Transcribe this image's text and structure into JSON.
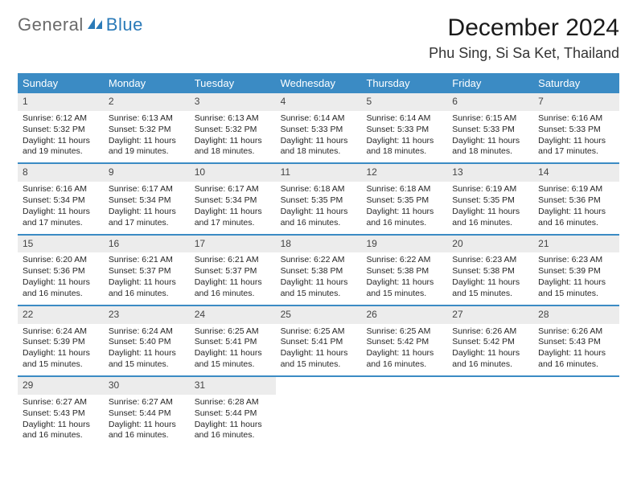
{
  "logo": {
    "text1": "General",
    "text2": "Blue",
    "icon_color": "#2a7ab8"
  },
  "title": "December 2024",
  "location": "Phu Sing, Si Sa Ket, Thailand",
  "colors": {
    "header_bg": "#3b8bc4",
    "header_text": "#ffffff",
    "daynum_bg": "#ececec",
    "week_border": "#3b8bc4",
    "body_text": "#262626"
  },
  "typography": {
    "title_fontsize": 30,
    "location_fontsize": 18,
    "dayheader_fontsize": 13,
    "daynum_fontsize": 12,
    "body_fontsize": 10.5
  },
  "day_labels": [
    "Sunday",
    "Monday",
    "Tuesday",
    "Wednesday",
    "Thursday",
    "Friday",
    "Saturday"
  ],
  "weeks": [
    [
      {
        "day": "1",
        "sunrise": "Sunrise: 6:12 AM",
        "sunset": "Sunset: 5:32 PM",
        "daylight": "Daylight: 11 hours and 19 minutes."
      },
      {
        "day": "2",
        "sunrise": "Sunrise: 6:13 AM",
        "sunset": "Sunset: 5:32 PM",
        "daylight": "Daylight: 11 hours and 19 minutes."
      },
      {
        "day": "3",
        "sunrise": "Sunrise: 6:13 AM",
        "sunset": "Sunset: 5:32 PM",
        "daylight": "Daylight: 11 hours and 18 minutes."
      },
      {
        "day": "4",
        "sunrise": "Sunrise: 6:14 AM",
        "sunset": "Sunset: 5:33 PM",
        "daylight": "Daylight: 11 hours and 18 minutes."
      },
      {
        "day": "5",
        "sunrise": "Sunrise: 6:14 AM",
        "sunset": "Sunset: 5:33 PM",
        "daylight": "Daylight: 11 hours and 18 minutes."
      },
      {
        "day": "6",
        "sunrise": "Sunrise: 6:15 AM",
        "sunset": "Sunset: 5:33 PM",
        "daylight": "Daylight: 11 hours and 18 minutes."
      },
      {
        "day": "7",
        "sunrise": "Sunrise: 6:16 AM",
        "sunset": "Sunset: 5:33 PM",
        "daylight": "Daylight: 11 hours and 17 minutes."
      }
    ],
    [
      {
        "day": "8",
        "sunrise": "Sunrise: 6:16 AM",
        "sunset": "Sunset: 5:34 PM",
        "daylight": "Daylight: 11 hours and 17 minutes."
      },
      {
        "day": "9",
        "sunrise": "Sunrise: 6:17 AM",
        "sunset": "Sunset: 5:34 PM",
        "daylight": "Daylight: 11 hours and 17 minutes."
      },
      {
        "day": "10",
        "sunrise": "Sunrise: 6:17 AM",
        "sunset": "Sunset: 5:34 PM",
        "daylight": "Daylight: 11 hours and 17 minutes."
      },
      {
        "day": "11",
        "sunrise": "Sunrise: 6:18 AM",
        "sunset": "Sunset: 5:35 PM",
        "daylight": "Daylight: 11 hours and 16 minutes."
      },
      {
        "day": "12",
        "sunrise": "Sunrise: 6:18 AM",
        "sunset": "Sunset: 5:35 PM",
        "daylight": "Daylight: 11 hours and 16 minutes."
      },
      {
        "day": "13",
        "sunrise": "Sunrise: 6:19 AM",
        "sunset": "Sunset: 5:35 PM",
        "daylight": "Daylight: 11 hours and 16 minutes."
      },
      {
        "day": "14",
        "sunrise": "Sunrise: 6:19 AM",
        "sunset": "Sunset: 5:36 PM",
        "daylight": "Daylight: 11 hours and 16 minutes."
      }
    ],
    [
      {
        "day": "15",
        "sunrise": "Sunrise: 6:20 AM",
        "sunset": "Sunset: 5:36 PM",
        "daylight": "Daylight: 11 hours and 16 minutes."
      },
      {
        "day": "16",
        "sunrise": "Sunrise: 6:21 AM",
        "sunset": "Sunset: 5:37 PM",
        "daylight": "Daylight: 11 hours and 16 minutes."
      },
      {
        "day": "17",
        "sunrise": "Sunrise: 6:21 AM",
        "sunset": "Sunset: 5:37 PM",
        "daylight": "Daylight: 11 hours and 16 minutes."
      },
      {
        "day": "18",
        "sunrise": "Sunrise: 6:22 AM",
        "sunset": "Sunset: 5:38 PM",
        "daylight": "Daylight: 11 hours and 15 minutes."
      },
      {
        "day": "19",
        "sunrise": "Sunrise: 6:22 AM",
        "sunset": "Sunset: 5:38 PM",
        "daylight": "Daylight: 11 hours and 15 minutes."
      },
      {
        "day": "20",
        "sunrise": "Sunrise: 6:23 AM",
        "sunset": "Sunset: 5:38 PM",
        "daylight": "Daylight: 11 hours and 15 minutes."
      },
      {
        "day": "21",
        "sunrise": "Sunrise: 6:23 AM",
        "sunset": "Sunset: 5:39 PM",
        "daylight": "Daylight: 11 hours and 15 minutes."
      }
    ],
    [
      {
        "day": "22",
        "sunrise": "Sunrise: 6:24 AM",
        "sunset": "Sunset: 5:39 PM",
        "daylight": "Daylight: 11 hours and 15 minutes."
      },
      {
        "day": "23",
        "sunrise": "Sunrise: 6:24 AM",
        "sunset": "Sunset: 5:40 PM",
        "daylight": "Daylight: 11 hours and 15 minutes."
      },
      {
        "day": "24",
        "sunrise": "Sunrise: 6:25 AM",
        "sunset": "Sunset: 5:41 PM",
        "daylight": "Daylight: 11 hours and 15 minutes."
      },
      {
        "day": "25",
        "sunrise": "Sunrise: 6:25 AM",
        "sunset": "Sunset: 5:41 PM",
        "daylight": "Daylight: 11 hours and 15 minutes."
      },
      {
        "day": "26",
        "sunrise": "Sunrise: 6:25 AM",
        "sunset": "Sunset: 5:42 PM",
        "daylight": "Daylight: 11 hours and 16 minutes."
      },
      {
        "day": "27",
        "sunrise": "Sunrise: 6:26 AM",
        "sunset": "Sunset: 5:42 PM",
        "daylight": "Daylight: 11 hours and 16 minutes."
      },
      {
        "day": "28",
        "sunrise": "Sunrise: 6:26 AM",
        "sunset": "Sunset: 5:43 PM",
        "daylight": "Daylight: 11 hours and 16 minutes."
      }
    ],
    [
      {
        "day": "29",
        "sunrise": "Sunrise: 6:27 AM",
        "sunset": "Sunset: 5:43 PM",
        "daylight": "Daylight: 11 hours and 16 minutes."
      },
      {
        "day": "30",
        "sunrise": "Sunrise: 6:27 AM",
        "sunset": "Sunset: 5:44 PM",
        "daylight": "Daylight: 11 hours and 16 minutes."
      },
      {
        "day": "31",
        "sunrise": "Sunrise: 6:28 AM",
        "sunset": "Sunset: 5:44 PM",
        "daylight": "Daylight: 11 hours and 16 minutes."
      },
      null,
      null,
      null,
      null
    ]
  ]
}
